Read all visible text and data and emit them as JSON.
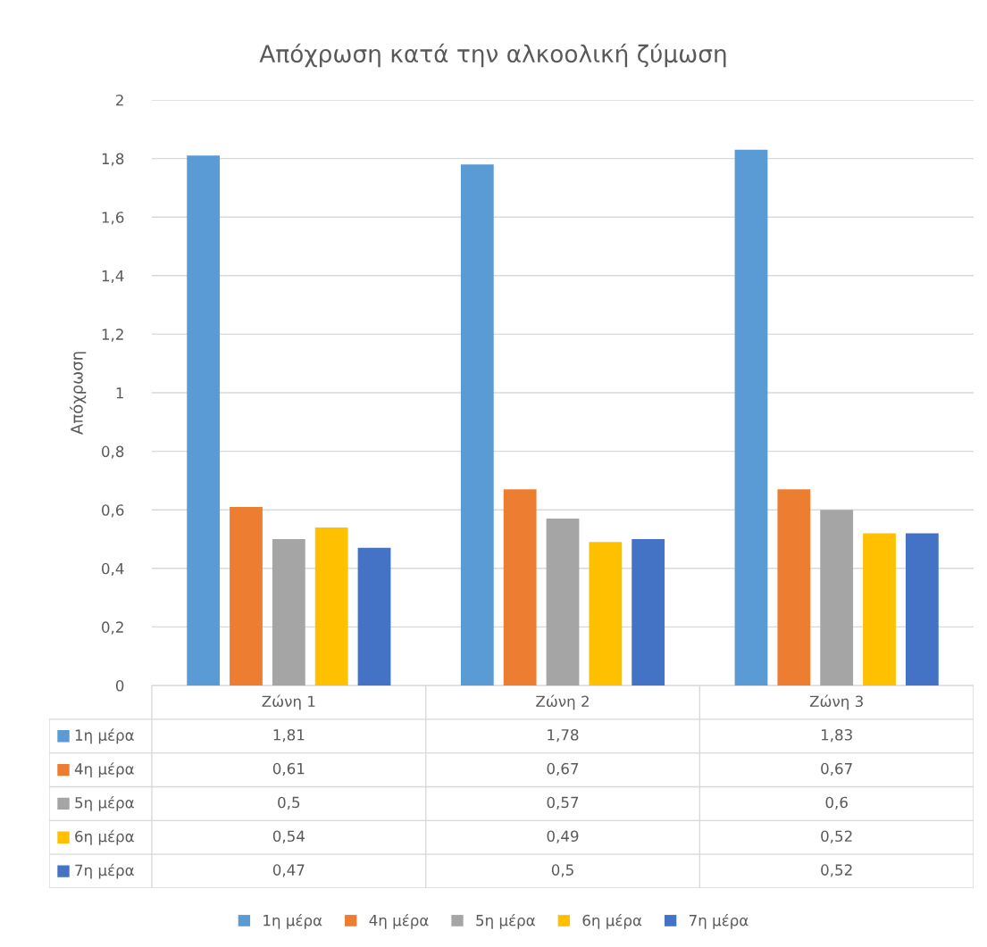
{
  "chart_data": {
    "type": "bar",
    "title": "Απόχρωση κατά την αλκοολική ζύμωση",
    "ylabel": "Απόχρωση",
    "categories": [
      "Ζώνη 1",
      "Ζώνη 2",
      "Ζώνη 3"
    ],
    "series": [
      {
        "name": "1η μέρα",
        "color": "#5b9bd5",
        "values": [
          1.81,
          1.78,
          1.83
        ],
        "value_labels": [
          "1,81",
          "1,78",
          "1,83"
        ]
      },
      {
        "name": "4η μέρα",
        "color": "#ed7d31",
        "values": [
          0.61,
          0.67,
          0.67
        ],
        "value_labels": [
          "0,61",
          "0,67",
          "0,67"
        ]
      },
      {
        "name": "5η μέρα",
        "color": "#a5a5a5",
        "values": [
          0.5,
          0.57,
          0.6
        ],
        "value_labels": [
          "0,5",
          "0,57",
          "0,6"
        ]
      },
      {
        "name": "6η μέρα",
        "color": "#ffc000",
        "values": [
          0.54,
          0.49,
          0.52
        ],
        "value_labels": [
          "0,54",
          "0,49",
          "0,52"
        ]
      },
      {
        "name": "7η μέρα",
        "color": "#4472c4",
        "values": [
          0.47,
          0.5,
          0.52
        ],
        "value_labels": [
          "0,47",
          "0,5",
          "0,52"
        ]
      }
    ],
    "ylim": [
      0,
      2
    ],
    "yticks": [
      0,
      {
        "value": 0.2,
        "label": "0,2"
      },
      {
        "value": 0.4,
        "label": "0,4"
      },
      {
        "value": 0.6,
        "label": "0,6"
      },
      {
        "value": 0.8,
        "label": "0,8"
      },
      1,
      {
        "value": 1.2,
        "label": "1,2"
      },
      {
        "value": 1.4,
        "label": "1,4"
      },
      {
        "value": 1.6,
        "label": "1,6"
      },
      {
        "value": 1.8,
        "label": "1,8"
      },
      2
    ],
    "grid": "y",
    "legend": "bottom"
  }
}
